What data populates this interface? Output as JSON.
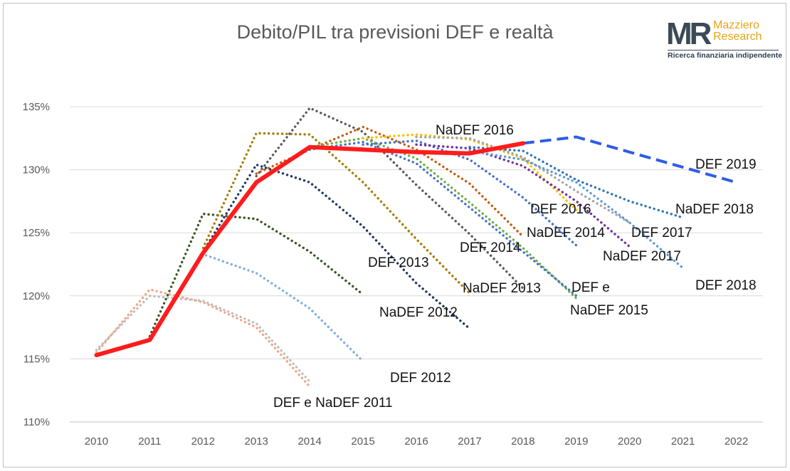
{
  "chart_data": {
    "type": "line",
    "title": "Debito/PIL tra previsioni DEF e realtà",
    "xlabel": "",
    "ylabel": "",
    "x": [
      "2010",
      "2011",
      "2012",
      "2013",
      "2014",
      "2015",
      "2016",
      "2017",
      "2018",
      "2019",
      "2020",
      "2021",
      "2022"
    ],
    "xlim": [
      2010,
      2022
    ],
    "ylim": [
      110,
      135
    ],
    "yticks": [
      "110%",
      "115%",
      "120%",
      "125%",
      "130%",
      "135%"
    ],
    "grid": "horizontal",
    "legend": "none",
    "series": [
      {
        "name": "DEF e NaDEF 2011",
        "style": "dotted",
        "color": "#f4a582",
        "points": [
          [
            2010,
            115.5
          ],
          [
            2011,
            120.5
          ],
          [
            2012,
            119.5
          ],
          [
            2013,
            117.5
          ],
          [
            2014,
            112.8
          ]
        ]
      },
      {
        "name": "",
        "style": "dotted",
        "color": "#bdbdbd",
        "points": [
          [
            2010,
            115.7
          ],
          [
            2011,
            120.0
          ],
          [
            2012,
            119.6
          ],
          [
            2013,
            117.8
          ],
          [
            2014,
            113.2
          ]
        ]
      },
      {
        "name": "DEF 2012",
        "style": "dotted",
        "color": "#7fb1dc",
        "points": [
          [
            2011,
            116.6
          ],
          [
            2012,
            123.3
          ],
          [
            2013,
            121.8
          ],
          [
            2014,
            119.0
          ],
          [
            2015,
            114.8
          ]
        ]
      },
      {
        "name": "NaDEF 2012",
        "style": "dotted",
        "color": "#375623",
        "points": [
          [
            2011,
            116.8
          ],
          [
            2012,
            126.5
          ],
          [
            2013,
            126.1
          ],
          [
            2014,
            123.5
          ],
          [
            2015,
            120.1
          ]
        ]
      },
      {
        "name": "DEF 2013",
        "style": "dotted",
        "color": "#1f3864",
        "points": [
          [
            2012,
            123.5
          ],
          [
            2013,
            130.4
          ],
          [
            2014,
            129.0
          ],
          [
            2015,
            125.5
          ],
          [
            2016,
            121.0
          ],
          [
            2017,
            117.4
          ]
        ]
      },
      {
        "name": "NaDEF 2013",
        "style": "dotted",
        "color": "#a67c00",
        "points": [
          [
            2012,
            123.8
          ],
          [
            2013,
            132.9
          ],
          [
            2014,
            132.8
          ],
          [
            2015,
            129.0
          ],
          [
            2016,
            124.5
          ],
          [
            2017,
            120.2
          ]
        ]
      },
      {
        "name": "DEF 2014",
        "style": "dotted",
        "color": "#595959",
        "points": [
          [
            2013,
            129.5
          ],
          [
            2014,
            134.9
          ],
          [
            2015,
            133.0
          ],
          [
            2016,
            128.8
          ],
          [
            2017,
            124.9
          ],
          [
            2018,
            120.6
          ]
        ]
      },
      {
        "name": "NaDEF 2014",
        "style": "dotted",
        "color": "#c55a11",
        "points": [
          [
            2013,
            129.7
          ],
          [
            2014,
            131.6
          ],
          [
            2015,
            133.4
          ],
          [
            2016,
            131.6
          ],
          [
            2017,
            128.9
          ],
          [
            2018,
            124.7
          ]
        ]
      },
      {
        "name": "DEF e NaDEF 2015",
        "style": "dotted",
        "color": "#70ad47",
        "points": [
          [
            2014,
            131.8
          ],
          [
            2015,
            132.5
          ],
          [
            2016,
            130.9
          ],
          [
            2017,
            127.4
          ],
          [
            2018,
            123.8
          ],
          [
            2019,
            119.8
          ]
        ]
      },
      {
        "name": "",
        "style": "dotted",
        "color": "#4472c4",
        "points": [
          [
            2014,
            131.6
          ],
          [
            2015,
            132.2
          ],
          [
            2016,
            130.5
          ],
          [
            2017,
            127.0
          ],
          [
            2018,
            123.5
          ],
          [
            2019,
            120.0
          ]
        ]
      },
      {
        "name": "DEF 2016",
        "style": "dotted",
        "color": "#4472c4",
        "points": [
          [
            2015,
            132.0
          ],
          [
            2016,
            132.3
          ],
          [
            2017,
            130.8
          ],
          [
            2018,
            127.8
          ],
          [
            2019,
            124.0
          ]
        ]
      },
      {
        "name": "NaDEF 2016",
        "style": "dotted",
        "color": "#ffc000",
        "points": [
          [
            2015,
            132.5
          ],
          [
            2016,
            132.8
          ],
          [
            2017,
            132.4
          ],
          [
            2018,
            130.9
          ],
          [
            2019,
            126.8
          ]
        ]
      },
      {
        "name": "DEF 2017",
        "style": "dotted",
        "color": "#a5a5a5",
        "points": [
          [
            2016,
            132.6
          ],
          [
            2017,
            132.5
          ],
          [
            2018,
            131.0
          ],
          [
            2019,
            128.3
          ],
          [
            2020,
            125.8
          ]
        ]
      },
      {
        "name": "NaDEF 2017",
        "style": "dotted",
        "color": "#7030a0",
        "points": [
          [
            2016,
            132.0
          ],
          [
            2017,
            131.7
          ],
          [
            2018,
            130.3
          ],
          [
            2019,
            127.5
          ],
          [
            2020,
            123.9
          ]
        ]
      },
      {
        "name": "DEF 2018",
        "style": "dotted",
        "color": "#5b9bd5",
        "points": [
          [
            2017,
            131.5
          ],
          [
            2018,
            130.8
          ],
          [
            2019,
            129.0
          ],
          [
            2020,
            125.8
          ],
          [
            2021,
            122.2
          ]
        ]
      },
      {
        "name": "NaDEF 2018",
        "style": "dotted",
        "color": "#2e75b6",
        "points": [
          [
            2017,
            131.8
          ],
          [
            2018,
            131.5
          ],
          [
            2019,
            129.2
          ],
          [
            2020,
            127.5
          ],
          [
            2021,
            126.2
          ]
        ]
      },
      {
        "name": "DEF 2019",
        "style": "dashed",
        "color": "#2e5ce6",
        "points": [
          [
            2018,
            132.1
          ],
          [
            2019,
            132.6
          ],
          [
            2020,
            131.4
          ],
          [
            2021,
            130.2
          ],
          [
            2022,
            129.0
          ]
        ]
      },
      {
        "name": "",
        "style": "solid",
        "color": "#ff1c1c",
        "points": [
          [
            2010,
            115.3
          ],
          [
            2011,
            116.5
          ],
          [
            2012,
            123.4
          ],
          [
            2013,
            129.0
          ],
          [
            2014,
            131.8
          ],
          [
            2015,
            131.6
          ],
          [
            2016,
            131.4
          ],
          [
            2017,
            131.3
          ],
          [
            2018,
            132.1
          ]
        ]
      }
    ],
    "labels": [
      {
        "text": "NaDEF 2016",
        "series": "NaDEF 2016"
      },
      {
        "text": "DEF 2019",
        "series": "DEF 2019"
      },
      {
        "text": "NaDEF 2018",
        "series": "NaDEF 2018"
      },
      {
        "text": "DEF 2016",
        "series": "DEF 2016"
      },
      {
        "text": "NaDEF 2014",
        "series": "NaDEF 2014"
      },
      {
        "text": "DEF 2017",
        "series": "DEF 2017"
      },
      {
        "text": "DEF 2014",
        "series": "DEF 2014"
      },
      {
        "text": "NaDEF 2017",
        "series": "NaDEF 2017"
      },
      {
        "text": "DEF 2013",
        "series": "DEF 2013"
      },
      {
        "text": "NaDEF 2013",
        "series": "NaDEF 2013"
      },
      {
        "text": "DEF e",
        "series": "DEF e NaDEF 2015"
      },
      {
        "text": "NaDEF 2015",
        "series": "DEF e NaDEF 2015"
      },
      {
        "text": "DEF 2018",
        "series": "DEF 2018"
      },
      {
        "text": "NaDEF 2012",
        "series": "NaDEF 2012"
      },
      {
        "text": "DEF 2012",
        "series": "DEF 2012"
      },
      {
        "text": "DEF e NaDEF 2011",
        "series": "DEF e NaDEF 2011"
      }
    ]
  },
  "logo": {
    "mark": "MR",
    "name_line1": "Mazziero",
    "name_line2": "Research",
    "tagline": "Ricerca finanziaria indipendente",
    "mark_color": "#3b4a57",
    "accent": "#e7a516"
  }
}
